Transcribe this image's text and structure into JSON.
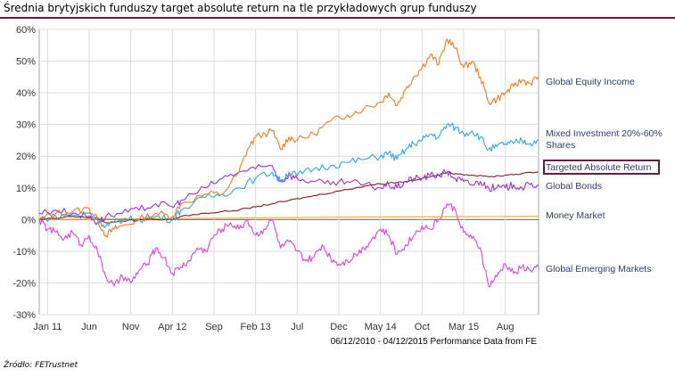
{
  "header": {
    "title": "Średnia brytyjskich funduszy target absolute return na tle przykładowych grup funduszy"
  },
  "footer": {
    "source": "Źródło: FETrustnet"
  },
  "chart_data": {
    "type": "line",
    "caption": "06/12/2010 - 04/12/2015 Performance Data from FE",
    "x_range": [
      "2010-12-06",
      "2015-12-04"
    ],
    "ylim": [
      -30,
      60
    ],
    "y_ticks": [
      "60%",
      "50%",
      "40%",
      "30%",
      "20%",
      "10%",
      "0%",
      "-10%",
      "-20%",
      "-30%"
    ],
    "x_ticks": [
      "Jan 11",
      "Jun",
      "Nov",
      "Apr 12",
      "Sep",
      "Feb 13",
      "Jul",
      "Dec",
      "May 14",
      "Oct",
      "Mar 15",
      "Aug"
    ],
    "grid": true,
    "legend_placement": "right",
    "highlighted_series": "Targeted Absolute Return",
    "highlight_color": "#6b1a3e",
    "series": [
      {
        "name": "Global Equity Income",
        "color": "#f07b1a",
        "points": [
          [
            0,
            0
          ],
          [
            2,
            2
          ],
          [
            4,
            2.5
          ],
          [
            6,
            3.5
          ],
          [
            7,
            0
          ],
          [
            8,
            -5
          ],
          [
            9,
            -3
          ],
          [
            10,
            -2
          ],
          [
            12,
            0
          ],
          [
            14,
            2
          ],
          [
            16,
            1
          ],
          [
            17,
            5
          ],
          [
            20,
            8
          ],
          [
            22,
            8
          ],
          [
            24,
            15
          ],
          [
            25,
            22
          ],
          [
            26,
            26
          ],
          [
            28,
            28
          ],
          [
            29,
            22
          ],
          [
            30,
            26
          ],
          [
            31,
            25
          ],
          [
            33,
            27
          ],
          [
            35,
            31
          ],
          [
            37,
            33
          ],
          [
            39,
            35
          ],
          [
            41,
            37
          ],
          [
            42,
            40
          ],
          [
            43,
            36
          ],
          [
            44,
            41
          ],
          [
            45,
            45
          ],
          [
            46,
            48
          ],
          [
            47,
            52
          ],
          [
            48,
            49
          ],
          [
            49,
            57
          ],
          [
            50,
            54
          ],
          [
            51,
            48
          ],
          [
            52,
            50
          ],
          [
            53,
            45
          ],
          [
            54,
            37
          ],
          [
            55,
            38
          ],
          [
            56,
            40
          ],
          [
            57,
            42
          ],
          [
            58,
            44
          ],
          [
            59,
            43
          ],
          [
            60,
            45
          ]
        ]
      },
      {
        "name": "Mixed Investment 20%-60% Shares",
        "color": "#2ea7e0",
        "points": [
          [
            0,
            0
          ],
          [
            2,
            1
          ],
          [
            4,
            1.5
          ],
          [
            6,
            2
          ],
          [
            7,
            0
          ],
          [
            8,
            -2
          ],
          [
            9,
            -1
          ],
          [
            10,
            0
          ],
          [
            12,
            0
          ],
          [
            14,
            1
          ],
          [
            16,
            0
          ],
          [
            17,
            3
          ],
          [
            20,
            7
          ],
          [
            22,
            8
          ],
          [
            24,
            10
          ],
          [
            26,
            13
          ],
          [
            28,
            15
          ],
          [
            29,
            12
          ],
          [
            30,
            15
          ],
          [
            31,
            14
          ],
          [
            33,
            16
          ],
          [
            35,
            17
          ],
          [
            37,
            18
          ],
          [
            39,
            19
          ],
          [
            41,
            20
          ],
          [
            42,
            21
          ],
          [
            43,
            19
          ],
          [
            44,
            22
          ],
          [
            45,
            24
          ],
          [
            46,
            25
          ],
          [
            47,
            27
          ],
          [
            48,
            26
          ],
          [
            49,
            30
          ],
          [
            50,
            29
          ],
          [
            51,
            27
          ],
          [
            52,
            28
          ],
          [
            53,
            26
          ],
          [
            54,
            22
          ],
          [
            55,
            23
          ],
          [
            56,
            24
          ],
          [
            57,
            24
          ],
          [
            58,
            25
          ],
          [
            59,
            24
          ],
          [
            60,
            25
          ]
        ]
      },
      {
        "name": "Targeted Absolute Return",
        "color": "#8b1a1a",
        "points": [
          [
            0,
            0
          ],
          [
            4,
            1
          ],
          [
            7,
            0.5
          ],
          [
            8,
            -1
          ],
          [
            10,
            -0.5
          ],
          [
            12,
            0
          ],
          [
            16,
            0
          ],
          [
            17,
            1
          ],
          [
            20,
            2
          ],
          [
            22,
            2.5
          ],
          [
            24,
            3
          ],
          [
            26,
            4
          ],
          [
            28,
            5
          ],
          [
            30,
            6
          ],
          [
            32,
            7
          ],
          [
            34,
            8
          ],
          [
            36,
            9
          ],
          [
            38,
            10
          ],
          [
            40,
            11
          ],
          [
            42,
            11.5
          ],
          [
            44,
            12
          ],
          [
            46,
            13
          ],
          [
            48,
            14
          ],
          [
            49,
            15
          ],
          [
            50,
            14.5
          ],
          [
            52,
            14
          ],
          [
            54,
            13.5
          ],
          [
            56,
            14
          ],
          [
            58,
            14.5
          ],
          [
            60,
            15
          ]
        ]
      },
      {
        "name": "Global Bonds",
        "color": "#9b30d9",
        "points": [
          [
            0,
            2
          ],
          [
            2,
            3
          ],
          [
            4,
            2
          ],
          [
            6,
            1
          ],
          [
            7,
            -1
          ],
          [
            8,
            1
          ],
          [
            10,
            2
          ],
          [
            12,
            3
          ],
          [
            14,
            5
          ],
          [
            16,
            4
          ],
          [
            17,
            6
          ],
          [
            20,
            10
          ],
          [
            22,
            13
          ],
          [
            24,
            15
          ],
          [
            26,
            16
          ],
          [
            28,
            17
          ],
          [
            29,
            12
          ],
          [
            30,
            14
          ],
          [
            31,
            13
          ],
          [
            33,
            12
          ],
          [
            35,
            11
          ],
          [
            37,
            12
          ],
          [
            39,
            11
          ],
          [
            41,
            10
          ],
          [
            42,
            11
          ],
          [
            43,
            10
          ],
          [
            44,
            12
          ],
          [
            45,
            13
          ],
          [
            46,
            13
          ],
          [
            47,
            14
          ],
          [
            48,
            14
          ],
          [
            49,
            15
          ],
          [
            50,
            13
          ],
          [
            51,
            12
          ],
          [
            52,
            11
          ],
          [
            53,
            12
          ],
          [
            54,
            10
          ],
          [
            55,
            10
          ],
          [
            56,
            10
          ],
          [
            57,
            11
          ],
          [
            58,
            10
          ],
          [
            59,
            11
          ],
          [
            60,
            11
          ]
        ]
      },
      {
        "name": "Money Market",
        "color": "#f5a623",
        "points": [
          [
            0,
            0
          ],
          [
            10,
            0.2
          ],
          [
            20,
            0.4
          ],
          [
            30,
            0.6
          ],
          [
            40,
            0.8
          ],
          [
            50,
            0.9
          ],
          [
            60,
            1
          ]
        ]
      },
      {
        "name": "Global Emerging Markets",
        "color": "#e040e0",
        "points": [
          [
            0,
            0
          ],
          [
            1,
            -3
          ],
          [
            2,
            -4
          ],
          [
            3,
            -6
          ],
          [
            4,
            -4
          ],
          [
            5,
            -8
          ],
          [
            6,
            -5
          ],
          [
            7,
            -10
          ],
          [
            8,
            -18
          ],
          [
            9,
            -21
          ],
          [
            10,
            -18
          ],
          [
            11,
            -20
          ],
          [
            12,
            -16
          ],
          [
            13,
            -14
          ],
          [
            14,
            -9
          ],
          [
            15,
            -12
          ],
          [
            16,
            -17
          ],
          [
            17,
            -15
          ],
          [
            18,
            -13
          ],
          [
            19,
            -9
          ],
          [
            20,
            -10
          ],
          [
            21,
            -5
          ],
          [
            22,
            -3
          ],
          [
            23,
            -1
          ],
          [
            24,
            -3
          ],
          [
            25,
            0
          ],
          [
            26,
            -5
          ],
          [
            27,
            -3
          ],
          [
            28,
            0
          ],
          [
            29,
            -9
          ],
          [
            30,
            -7
          ],
          [
            31,
            -10
          ],
          [
            32,
            -13
          ],
          [
            33,
            -12
          ],
          [
            34,
            -8
          ],
          [
            35,
            -12
          ],
          [
            36,
            -14
          ],
          [
            37,
            -13
          ],
          [
            38,
            -11
          ],
          [
            39,
            -9
          ],
          [
            40,
            -6
          ],
          [
            41,
            -3
          ],
          [
            42,
            -5
          ],
          [
            43,
            -11
          ],
          [
            44,
            -8
          ],
          [
            45,
            -5
          ],
          [
            46,
            -2
          ],
          [
            47,
            -3
          ],
          [
            48,
            0
          ],
          [
            49,
            5
          ],
          [
            50,
            3
          ],
          [
            51,
            -4
          ],
          [
            52,
            -6
          ],
          [
            53,
            -9
          ],
          [
            54,
            -21
          ],
          [
            55,
            -18
          ],
          [
            56,
            -14
          ],
          [
            57,
            -17
          ],
          [
            58,
            -15
          ],
          [
            59,
            -16
          ],
          [
            60,
            -15
          ]
        ]
      }
    ]
  }
}
